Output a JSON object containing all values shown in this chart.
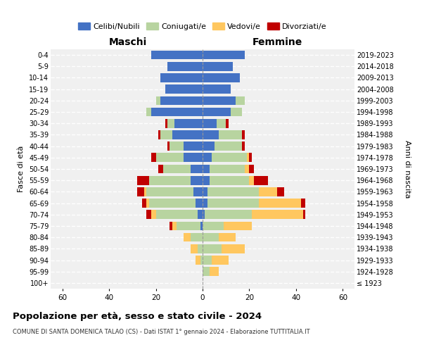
{
  "age_groups": [
    "100+",
    "95-99",
    "90-94",
    "85-89",
    "80-84",
    "75-79",
    "70-74",
    "65-69",
    "60-64",
    "55-59",
    "50-54",
    "45-49",
    "40-44",
    "35-39",
    "30-34",
    "25-29",
    "20-24",
    "15-19",
    "10-14",
    "5-9",
    "0-4"
  ],
  "birth_years": [
    "≤ 1923",
    "1924-1928",
    "1929-1933",
    "1934-1938",
    "1939-1943",
    "1944-1948",
    "1949-1953",
    "1954-1958",
    "1959-1963",
    "1964-1968",
    "1969-1973",
    "1974-1978",
    "1979-1983",
    "1984-1988",
    "1989-1993",
    "1994-1998",
    "1999-2003",
    "2004-2008",
    "2009-2013",
    "2014-2018",
    "2019-2023"
  ],
  "male": {
    "celibe": [
      0,
      0,
      0,
      0,
      0,
      1,
      2,
      3,
      4,
      5,
      5,
      8,
      8,
      13,
      12,
      22,
      18,
      16,
      18,
      15,
      22
    ],
    "coniugato": [
      0,
      0,
      1,
      2,
      5,
      10,
      18,
      20,
      20,
      18,
      12,
      12,
      6,
      5,
      3,
      2,
      2,
      0,
      0,
      0,
      0
    ],
    "vedovo": [
      0,
      0,
      2,
      3,
      3,
      2,
      2,
      1,
      1,
      0,
      0,
      0,
      0,
      0,
      0,
      0,
      0,
      0,
      0,
      0,
      0
    ],
    "divorziato": [
      0,
      0,
      0,
      0,
      0,
      1,
      2,
      2,
      3,
      5,
      2,
      2,
      1,
      1,
      1,
      0,
      0,
      0,
      0,
      0,
      0
    ]
  },
  "female": {
    "nubile": [
      0,
      0,
      0,
      0,
      0,
      0,
      1,
      2,
      2,
      3,
      3,
      4,
      5,
      7,
      6,
      12,
      14,
      12,
      16,
      13,
      18
    ],
    "coniugata": [
      0,
      3,
      4,
      8,
      7,
      9,
      20,
      22,
      22,
      17,
      15,
      15,
      12,
      10,
      4,
      5,
      4,
      0,
      0,
      0,
      0
    ],
    "vedova": [
      0,
      4,
      7,
      10,
      7,
      12,
      22,
      18,
      8,
      2,
      2,
      1,
      0,
      0,
      0,
      0,
      0,
      0,
      0,
      0,
      0
    ],
    "divorziata": [
      0,
      0,
      0,
      0,
      0,
      0,
      1,
      2,
      3,
      6,
      2,
      1,
      1,
      1,
      1,
      0,
      0,
      0,
      0,
      0,
      0
    ]
  },
  "colors": {
    "celibe": "#4472c4",
    "coniugato": "#b8d4a0",
    "vedovo": "#ffc75f",
    "divorziato": "#c00000"
  },
  "xlim": 65,
  "title": "Popolazione per età, sesso e stato civile - 2024",
  "subtitle": "COMUNE DI SANTA DOMENICA TALAO (CS) - Dati ISTAT 1° gennaio 2024 - Elaborazione TUTTITALIA.IT",
  "ylabel": "Fasce di età",
  "ylabel_right": "Anni di nascita",
  "xlabel_left": "Maschi",
  "xlabel_right": "Femmine",
  "legend_labels": [
    "Celibi/Nubili",
    "Coniugati/e",
    "Vedovi/e",
    "Divorziati/e"
  ],
  "bg_color": "#f0f0f0"
}
